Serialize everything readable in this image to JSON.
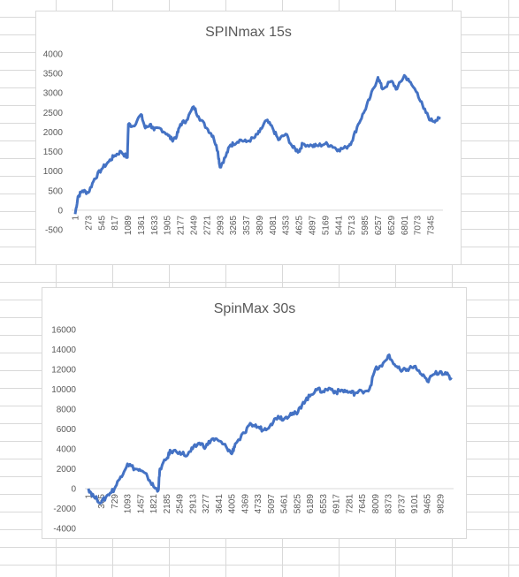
{
  "chart_data": [
    {
      "type": "line",
      "title": "SPINmax 15s",
      "ylim": [
        -500,
        4000
      ],
      "y_ticks": [
        "-500",
        "0",
        "500",
        "1000",
        "1500",
        "2000",
        "2500",
        "3000",
        "3500",
        "4000"
      ],
      "x_range": [
        1,
        7600
      ],
      "x_ticks": [
        "1",
        "273",
        "545",
        "817",
        "1089",
        "1361",
        "1633",
        "1905",
        "2177",
        "2449",
        "2721",
        "2993",
        "3265",
        "3537",
        "3809",
        "4081",
        "4353",
        "4625",
        "4897",
        "5169",
        "5441",
        "5713",
        "5985",
        "6257",
        "6529",
        "6801",
        "7073",
        "7345"
      ],
      "series_color": "#4472c4",
      "x": [
        1,
        60,
        150,
        273,
        400,
        545,
        700,
        817,
        950,
        1080,
        1100,
        1200,
        1361,
        1450,
        1550,
        1633,
        1750,
        1905,
        2000,
        2100,
        2177,
        2300,
        2449,
        2550,
        2721,
        2850,
        2950,
        2993,
        3100,
        3200,
        3265,
        3400,
        3537,
        3700,
        3809,
        3950,
        4081,
        4200,
        4353,
        4500,
        4625,
        4700,
        4897,
        5000,
        5169,
        5300,
        5441,
        5600,
        5713,
        5850,
        5985,
        6100,
        6257,
        6350,
        6529,
        6650,
        6801,
        6900,
        7073,
        7200,
        7345,
        7450,
        7550
      ],
      "y": [
        -100,
        350,
        500,
        450,
        800,
        1050,
        1250,
        1400,
        1500,
        1350,
        2200,
        2150,
        2450,
        2100,
        2200,
        2050,
        2100,
        1950,
        1800,
        1900,
        2200,
        2300,
        2650,
        2400,
        2100,
        1900,
        1500,
        1100,
        1350,
        1650,
        1700,
        1800,
        1750,
        1850,
        2000,
        2300,
        2100,
        1800,
        1950,
        1600,
        1500,
        1700,
        1650,
        1650,
        1700,
        1650,
        1550,
        1600,
        1750,
        2200,
        2550,
        2900,
        3400,
        3100,
        3300,
        3100,
        3450,
        3300,
        3000,
        2600,
        2300,
        2300,
        2350
      ]
    },
    {
      "type": "line",
      "title": "SpinMax 30s",
      "ylim": [
        -4000,
        16000
      ],
      "y_ticks": [
        "-4000",
        "-2000",
        "0",
        "2000",
        "4000",
        "6000",
        "8000",
        "10000",
        "12000",
        "14000",
        "16000"
      ],
      "x_range": [
        1,
        10200
      ],
      "x_ticks": [
        "1",
        "365",
        "729",
        "1093",
        "1457",
        "1821",
        "2185",
        "2549",
        "2913",
        "3277",
        "3641",
        "4005",
        "4369",
        "4733",
        "5097",
        "5461",
        "5825",
        "6189",
        "6553",
        "6917",
        "7281",
        "7645",
        "8009",
        "8373",
        "8737",
        "9101",
        "9465",
        "9829"
      ],
      "series_color": "#4472c4",
      "x": [
        1,
        150,
        365,
        550,
        729,
        900,
        1093,
        1300,
        1457,
        1650,
        1821,
        1950,
        2000,
        2185,
        2300,
        2549,
        2750,
        2913,
        3100,
        3277,
        3450,
        3641,
        3850,
        4005,
        4100,
        4369,
        4550,
        4733,
        4900,
        5097,
        5300,
        5461,
        5650,
        5825,
        6000,
        6189,
        6350,
        6553,
        6750,
        6917,
        7100,
        7281,
        7450,
        7645,
        7850,
        8009,
        8200,
        8373,
        8550,
        8737,
        8900,
        9101,
        9300,
        9465,
        9650,
        9829,
        10000,
        10150
      ],
      "y": [
        0,
        -800,
        -1400,
        -600,
        0,
        1200,
        2500,
        2000,
        1800,
        1200,
        200,
        -200,
        2000,
        3000,
        3800,
        3700,
        3300,
        4000,
        4600,
        4200,
        5000,
        4800,
        4200,
        3500,
        4500,
        5600,
        6500,
        6200,
        5900,
        6500,
        7300,
        7000,
        7600,
        7500,
        8700,
        9300,
        10000,
        9800,
        10100,
        9700,
        9900,
        9700,
        9600,
        9800,
        10000,
        12000,
        12300,
        13400,
        12500,
        11800,
        12000,
        12300,
        11500,
        10800,
        11500,
        11800,
        11500,
        11000
      ]
    }
  ]
}
